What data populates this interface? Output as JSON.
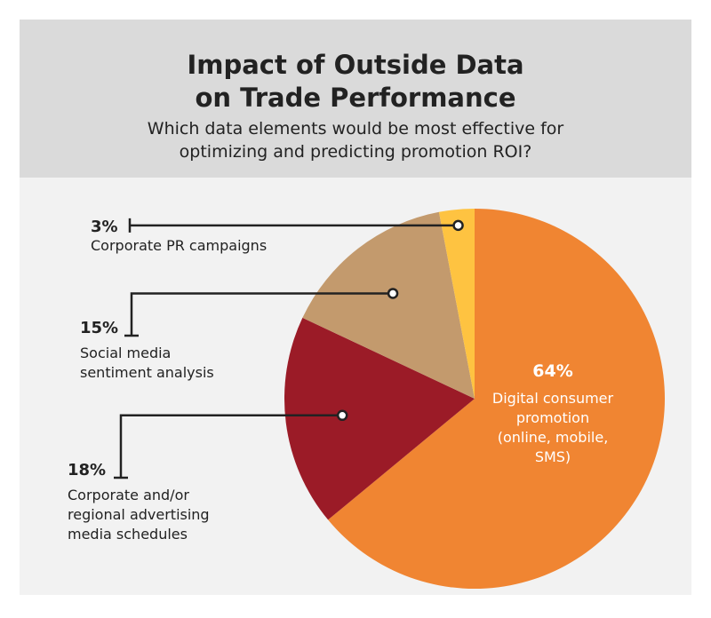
{
  "title_lines": [
    "Impact of Outside Data",
    "on Trade Performance"
  ],
  "subtitle_lines": [
    "Which data elements would be most effective for",
    "optimizing and predicting promotion ROI?"
  ],
  "colors": {
    "header_bg": "#dadada",
    "panel_bg": "#f2f2f2",
    "digital": "#f08532",
    "corporate_advertising": "#9b1b27",
    "social_media": "#c39a6d",
    "pr_campaigns": "#fec341"
  },
  "chart_data": {
    "type": "pie",
    "title": "Impact of Outside Data on Trade Performance",
    "subtitle": "Which data elements would be most effective for optimizing and predicting promotion ROI?",
    "unit": "%",
    "start": "12 o'clock, clockwise",
    "slices": [
      {
        "key": "digital",
        "value": 64,
        "percent_label": "64%",
        "label_lines": [
          "Digital consumer",
          "promotion",
          "(online, mobile,",
          "SMS)"
        ]
      },
      {
        "key": "corporate_advertising",
        "value": 18,
        "percent_label": "18%",
        "label_lines": [
          "Corporate and/or",
          "regional advertising",
          "media schedules"
        ]
      },
      {
        "key": "social_media",
        "value": 15,
        "percent_label": "15%",
        "label_lines": [
          "Social media",
          "sentiment analysis"
        ]
      },
      {
        "key": "pr_campaigns",
        "value": 3,
        "percent_label": "3%",
        "label_lines": [
          "Corporate PR campaigns"
        ]
      }
    ]
  }
}
